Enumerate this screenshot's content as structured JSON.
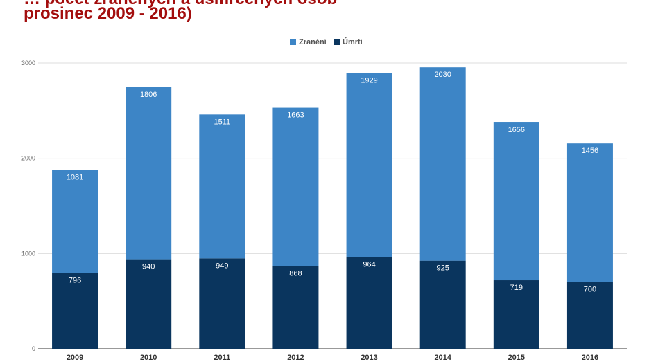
{
  "title_lines": [
    "… počet zraněných a usmrcených osob",
    "prosinec 2009 - 2016)"
  ],
  "chart_data": {
    "type": "bar",
    "stacked": true,
    "title": "… počet zraněných a usmrcených osob prosinec 2009 - 2016)",
    "categories": [
      "2009",
      "2010",
      "2011",
      "2012",
      "2013",
      "2014",
      "2015",
      "2016"
    ],
    "series": [
      {
        "name": "Úmrtí",
        "values": [
          796,
          940,
          949,
          868,
          964,
          925,
          719,
          700
        ],
        "color": "#0a355e"
      },
      {
        "name": "Zranění",
        "values": [
          1081,
          1806,
          1511,
          1663,
          1929,
          2030,
          1656,
          1456
        ],
        "color": "#3d85c6"
      }
    ],
    "yticks": [
      0,
      1000,
      2000,
      3000
    ],
    "ylim": [
      0,
      3000
    ],
    "legend_order": [
      "Zranění",
      "Úmrtí"
    ],
    "legend_position": "top-center",
    "grid": true
  }
}
